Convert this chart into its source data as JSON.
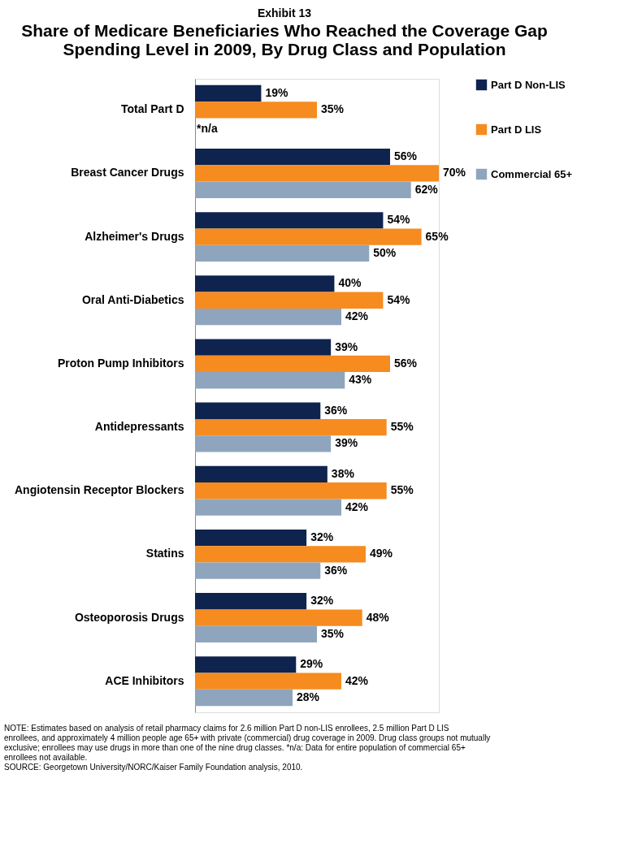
{
  "chart_data": {
    "type": "bar",
    "orientation": "horizontal",
    "title": "Share of Medicare Beneficiaries Who Reached the Coverage Gap Spending Level in 2009, By Drug Class and Population",
    "categories": [
      "Total Part D",
      "Breast Cancer Drugs",
      "Alzheimer's Drugs",
      "Oral Anti-Diabetics",
      "Proton Pump Inhibitors",
      "Antidepressants",
      "Angiotensin Receptor Blockers",
      "Statins",
      "Osteoporosis Drugs",
      "ACE Inhibitors"
    ],
    "series": [
      {
        "name": "Part D Non-LIS",
        "color": "#0f234f",
        "values": [
          19,
          56,
          54,
          40,
          39,
          36,
          38,
          32,
          32,
          29
        ],
        "value_labels": [
          "19%",
          "56%",
          "54%",
          "40%",
          "39%",
          "36%",
          "38%",
          "32%",
          "32%",
          "29%"
        ]
      },
      {
        "name": "Part D LIS",
        "color": "#f68b1f",
        "values": [
          35,
          70,
          65,
          54,
          56,
          55,
          55,
          49,
          48,
          42
        ],
        "value_labels": [
          "35%",
          "70%",
          "65%",
          "54%",
          "56%",
          "55%",
          "55%",
          "49%",
          "48%",
          "42%"
        ]
      },
      {
        "name": "Commercial 65+",
        "color": "#8fa5be",
        "values": [
          null,
          62,
          50,
          42,
          43,
          39,
          42,
          36,
          35,
          28
        ],
        "value_labels": [
          null,
          "62%",
          "50%",
          "42%",
          "43%",
          "39%",
          "42%",
          "36%",
          "35%",
          "28%"
        ]
      }
    ],
    "annotations": [
      "Exhibit 13",
      {
        "text": "*n/a",
        "x": 0,
        "y": "Total Part D"
      },
      "NOTE:  Estimates based on analysis of retail pharmacy claims for 2.6 million Part D non-LIS enrollees, 2.5 million Part D LIS enrollees, and approximately 4 million people age 65+ with private (commercial) drug coverage in 2009.  Drug class groups not mutually exclusive; enrollees may use drugs in more than one of the nine drug classes. *n/a: Data for entire population of commercial 65+ enrollees not available.\nSOURCE:  Georgetown University/NORC/Kaiser Family Foundation analysis, 2010."
    ],
    "legend": "right",
    "grid": false
  }
}
